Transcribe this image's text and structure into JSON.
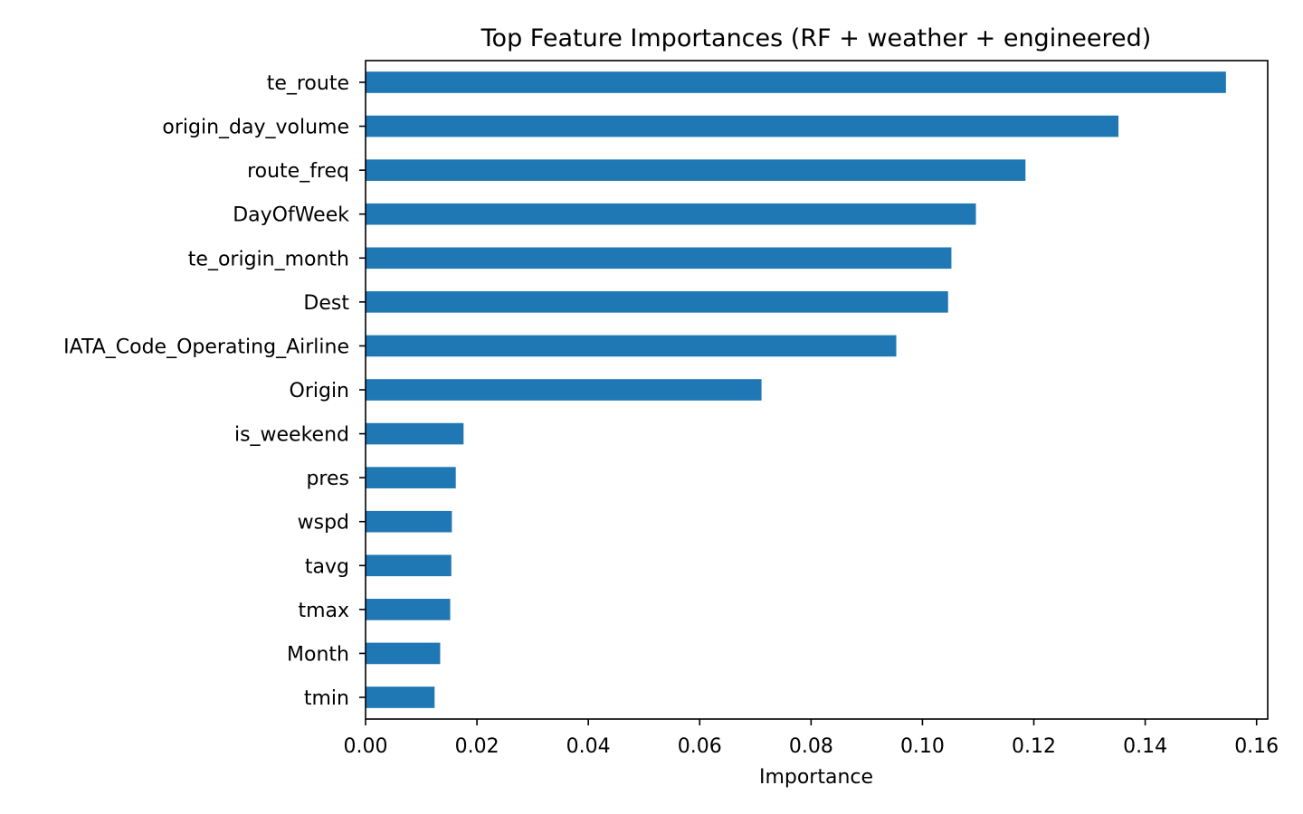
{
  "chart_data": {
    "type": "bar",
    "orientation": "horizontal",
    "title": "Top Feature Importances (RF + weather + engineered)",
    "xlabel": "Importance",
    "ylabel": "",
    "xlim": [
      0,
      0.162
    ],
    "x_ticks": [
      0.0,
      0.02,
      0.04,
      0.06,
      0.08,
      0.1,
      0.12,
      0.14,
      0.16
    ],
    "x_tick_labels": [
      "0.00",
      "0.02",
      "0.04",
      "0.06",
      "0.08",
      "0.10",
      "0.12",
      "0.14",
      "0.16"
    ],
    "categories": [
      "te_route",
      "origin_day_volume",
      "route_freq",
      "DayOfWeek",
      "te_origin_month",
      "Dest",
      "IATA_Code_Operating_Airline",
      "Origin",
      "is_weekend",
      "pres",
      "wspd",
      "tavg",
      "tmax",
      "Month",
      "tmin"
    ],
    "values": [
      0.1545,
      0.1352,
      0.1185,
      0.1096,
      0.1052,
      0.1046,
      0.0953,
      0.0711,
      0.0176,
      0.0162,
      0.0155,
      0.0154,
      0.0152,
      0.0134,
      0.0124
    ],
    "bar_color": "#1f77b4",
    "grid": false,
    "legend": "none"
  }
}
